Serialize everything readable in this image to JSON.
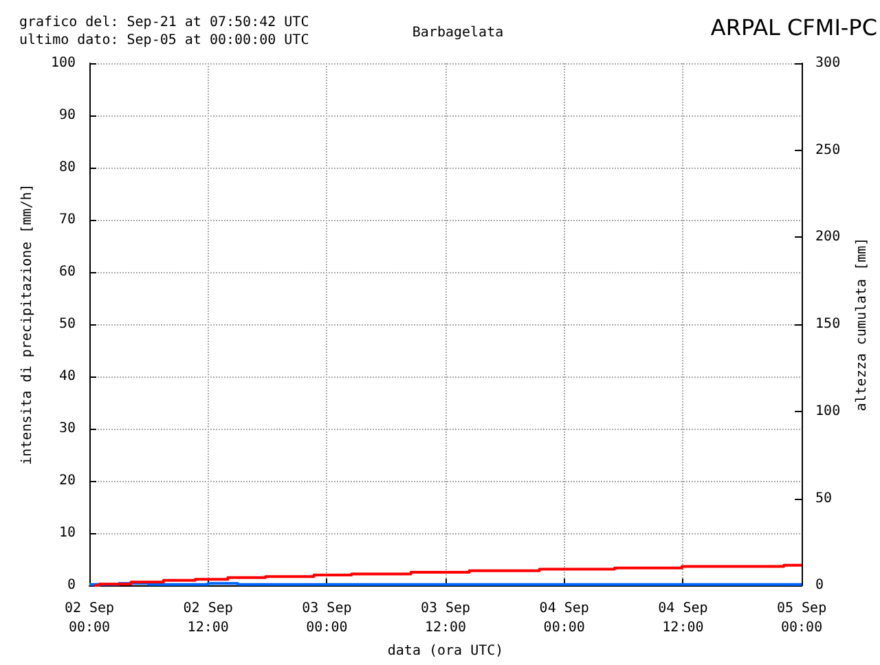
{
  "chart_data": {
    "type": "step",
    "title": "Barbagelata",
    "annotations": [
      "grafico del: Sep-21 at 07:50:42 UTC\nultimo dato: Sep-05 at 00:00:00 UTC",
      "ARPAL CFMI-PC"
    ],
    "xlabel": "data (ora UTC)",
    "ylabel": "intensita di precipitazione [mm/h]",
    "y2label": "altezza cumulata [mm]",
    "xlim": [
      "--09-02T00:00",
      "--09-05T00:00"
    ],
    "xticks": [
      {
        "value": "--09-02T00:00",
        "label": "02 Sep\n00:00"
      },
      {
        "value": "--09-02T12:00",
        "label": "02 Sep\n12:00"
      },
      {
        "value": "--09-03T00:00",
        "label": "03 Sep\n00:00"
      },
      {
        "value": "--09-03T12:00",
        "label": "03 Sep\n12:00"
      },
      {
        "value": "--09-04T00:00",
        "label": "04 Sep\n00:00"
      },
      {
        "value": "--09-04T12:00",
        "label": "04 Sep\n12:00"
      },
      {
        "value": "--09-05T00:00",
        "label": "05 Sep\n00:00"
      }
    ],
    "ylim": [
      0,
      100
    ],
    "yticks": [
      0,
      10,
      20,
      30,
      40,
      50,
      60,
      70,
      80,
      90,
      100
    ],
    "y2lim": [
      0,
      300
    ],
    "y2ticks": [
      0,
      50,
      100,
      150,
      200,
      250,
      300
    ],
    "grid": true,
    "line_style": "solid",
    "series": [
      {
        "color": "#0066ff",
        "x": [
          "--09-02T00:00",
          "--09-02T03:00",
          "--09-02T06:00",
          "--09-02T09:00",
          "--09-02T12:00",
          "--09-02T15:00",
          "--09-02T18:00",
          "--09-02T21:00",
          "--09-03T00:00",
          "--09-03T03:00",
          "--09-03T06:00",
          "--09-03T09:00",
          "--09-03T12:00",
          "--09-03T15:00",
          "--09-03T18:00",
          "--09-03T21:00",
          "--09-04T00:00",
          "--09-04T03:00",
          "--09-04T06:00",
          "--09-04T09:00",
          "--09-04T12:00",
          "--09-04T15:00",
          "--09-04T18:00",
          "--09-04T21:00",
          "--09-05T00:00"
        ],
        "values": [
          0.2,
          0.4,
          0.2,
          0.2,
          0.4,
          0.2,
          0.2,
          0.2,
          0.2,
          0.2,
          0.2,
          0.2,
          0.2,
          0.2,
          0.2,
          0.2,
          0.2,
          0.2,
          0.2,
          0.2,
          0.2,
          0.2,
          0.2,
          0.2,
          0.2
        ]
      },
      {
        "color": "#ff0000",
        "axis": "y2",
        "x": [
          "--09-02T00:30",
          "--09-02T01:00",
          "--09-02T04:12",
          "--09-02T07:30",
          "--09-02T10:42",
          "--09-02T14:00",
          "--09-02T17:48",
          "--09-02T22:42",
          "--09-03T02:30",
          "--09-03T08:30",
          "--09-03T14:24",
          "--09-03T21:30",
          "--09-04T05:06",
          "--09-04T11:54",
          "--09-04T22:12",
          "--09-05T00:00"
        ],
        "values": [
          0,
          0.8,
          2.0,
          2.9,
          3.5,
          4.5,
          5.1,
          6.0,
          6.6,
          7.6,
          8.5,
          9.4,
          10.0,
          10.9,
          11.6,
          11.6
        ]
      }
    ]
  }
}
